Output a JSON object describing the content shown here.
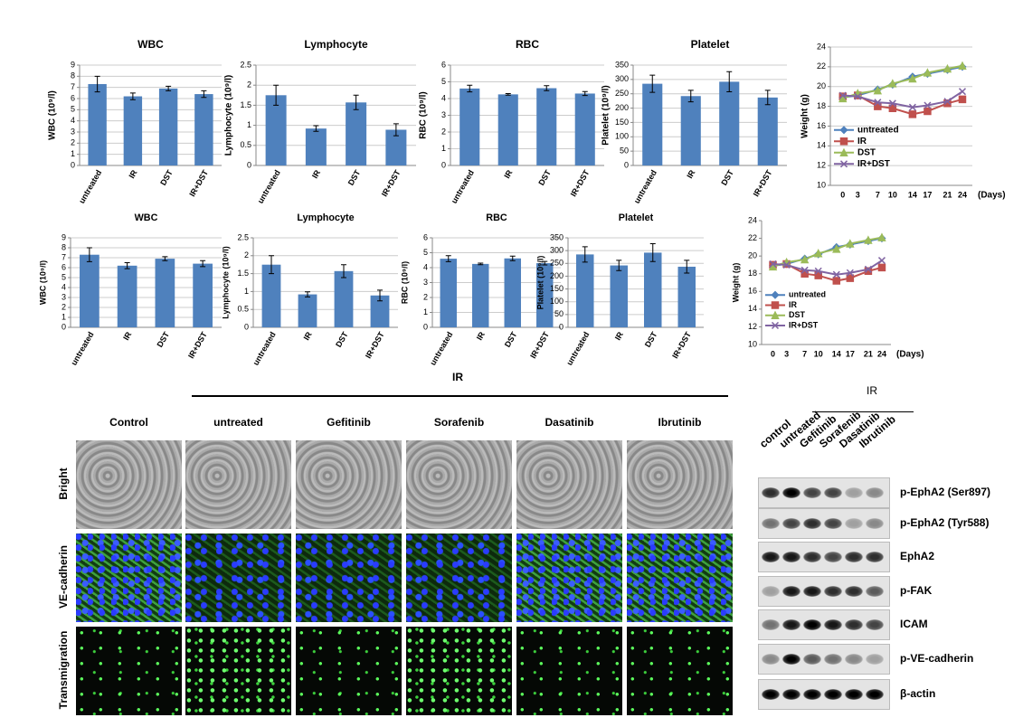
{
  "chart_data": [
    {
      "type": "bar",
      "title": "WBC",
      "ylabel": "WBC (10⁹/l)",
      "categories": [
        "untreated",
        "IR",
        "DST",
        "IR+DST"
      ],
      "values": [
        7.3,
        6.2,
        6.9,
        6.4
      ],
      "errors": [
        0.7,
        0.3,
        0.2,
        0.3
      ],
      "color": "#4f81bd",
      "ylim": [
        0,
        9
      ],
      "yticks": [
        0,
        1,
        2,
        3,
        4,
        5,
        6,
        7,
        8,
        9
      ],
      "grid": true
    },
    {
      "type": "bar",
      "title": "Lymphocyte",
      "ylabel": "Lymphocyte (10⁹/l)",
      "categories": [
        "untreated",
        "IR",
        "DST",
        "IR+DST"
      ],
      "values": [
        1.75,
        0.92,
        1.57,
        0.89
      ],
      "errors": [
        0.25,
        0.07,
        0.18,
        0.15
      ],
      "color": "#4f81bd",
      "ylim": [
        0,
        2.5
      ],
      "yticks": [
        0,
        0.5,
        1,
        1.5,
        2,
        2.5
      ],
      "grid": true
    },
    {
      "type": "bar",
      "title": "RBC",
      "ylabel": "RBC (10⁹/l)",
      "categories": [
        "untreated",
        "IR",
        "DST",
        "IR+DST"
      ],
      "values": [
        4.6,
        4.25,
        4.62,
        4.3
      ],
      "errors": [
        0.2,
        0.05,
        0.15,
        0.12
      ],
      "color": "#4f81bd",
      "ylim": [
        0,
        6
      ],
      "yticks": [
        0,
        1,
        2,
        3,
        4,
        5,
        6
      ],
      "grid": true
    },
    {
      "type": "bar",
      "title": "Platelet",
      "ylabel": "Platelet (10⁹/l)",
      "categories": [
        "untreated",
        "IR",
        "DST",
        "IR+DST"
      ],
      "values": [
        285,
        242,
        292,
        237
      ],
      "errors": [
        30,
        20,
        35,
        25
      ],
      "color": "#4f81bd",
      "ylim": [
        0,
        350
      ],
      "yticks": [
        0,
        50,
        100,
        150,
        200,
        250,
        300,
        350
      ],
      "grid": true
    },
    {
      "type": "line",
      "ylabel": "Weight (g)",
      "xlabel": "(Days)",
      "x": [
        0,
        3,
        7,
        10,
        14,
        17,
        21,
        24
      ],
      "xticks": [
        0,
        3,
        7,
        10,
        14,
        17,
        21,
        24
      ],
      "xlim": [
        -2.5,
        26
      ],
      "ylim": [
        10,
        24
      ],
      "yticks": [
        10,
        12,
        14,
        16,
        18,
        20,
        22,
        24
      ],
      "grid": true,
      "legend": "lower left",
      "series": [
        {
          "name": "untreated",
          "color": "#4f81bd",
          "values": [
            18.9,
            19.1,
            19.7,
            20.2,
            21.0,
            21.3,
            21.7,
            22.0
          ]
        },
        {
          "name": "IR",
          "color": "#c0504d",
          "values": [
            19.0,
            19.1,
            18.0,
            17.8,
            17.2,
            17.5,
            18.3,
            18.7
          ]
        },
        {
          "name": "DST",
          "color": "#9bbb59",
          "values": [
            18.8,
            19.3,
            19.6,
            20.3,
            20.8,
            21.4,
            21.8,
            22.1
          ]
        },
        {
          "name": "IR+DST",
          "color": "#8064a2",
          "values": [
            19.1,
            19.0,
            18.4,
            18.3,
            17.9,
            18.1,
            18.5,
            19.5
          ]
        }
      ]
    },
    {
      "type": "bar",
      "title": "WBC",
      "ylabel": "WBC (10⁹/l)",
      "categories": [
        "untreated",
        "IR",
        "DST",
        "IR+DST"
      ],
      "values": [
        7.3,
        6.2,
        6.9,
        6.4
      ],
      "errors": [
        0.7,
        0.3,
        0.2,
        0.3
      ],
      "color": "#4f81bd",
      "ylim": [
        0,
        9
      ],
      "yticks": [
        0,
        1,
        2,
        3,
        4,
        5,
        6,
        7,
        8,
        9
      ],
      "grid": true
    },
    {
      "type": "bar",
      "title": "Lymphocyte",
      "ylabel": "Lymphocyte (10⁹/l)",
      "categories": [
        "untreated",
        "IR",
        "DST",
        "IR+DST"
      ],
      "values": [
        1.75,
        0.92,
        1.57,
        0.89
      ],
      "errors": [
        0.25,
        0.07,
        0.18,
        0.15
      ],
      "color": "#4f81bd",
      "ylim": [
        0,
        2.5
      ],
      "yticks": [
        0,
        0.5,
        1,
        1.5,
        2,
        2.5
      ],
      "grid": true
    },
    {
      "type": "bar",
      "title": "RBC",
      "ylabel": "RBC (10⁹/l)",
      "categories": [
        "untreated",
        "IR",
        "DST",
        "IR+DST"
      ],
      "values": [
        4.6,
        4.25,
        4.62,
        4.3
      ],
      "errors": [
        0.2,
        0.05,
        0.15,
        0.12
      ],
      "color": "#4f81bd",
      "ylim": [
        0,
        6
      ],
      "yticks": [
        0,
        1,
        2,
        3,
        4,
        5,
        6
      ],
      "grid": true
    },
    {
      "type": "bar",
      "title": "Platelet",
      "ylabel": "Platelet (10⁹/l)",
      "categories": [
        "untreated",
        "IR",
        "DST",
        "IR+DST"
      ],
      "values": [
        285,
        242,
        292,
        237
      ],
      "errors": [
        30,
        20,
        35,
        25
      ],
      "color": "#4f81bd",
      "ylim": [
        0,
        350
      ],
      "yticks": [
        0,
        50,
        100,
        150,
        200,
        250,
        300,
        350
      ],
      "grid": true
    },
    {
      "type": "line",
      "ylabel": "Weight (g)",
      "xlabel": "(Days)",
      "x": [
        0,
        3,
        7,
        10,
        14,
        17,
        21,
        24
      ],
      "xticks": [
        0,
        3,
        7,
        10,
        14,
        17,
        21,
        24
      ],
      "xlim": [
        -2.5,
        26
      ],
      "ylim": [
        10,
        24
      ],
      "yticks": [
        10,
        12,
        14,
        16,
        18,
        20,
        22,
        24
      ],
      "grid": false,
      "legend": "lower left",
      "series": [
        {
          "name": "untreated",
          "color": "#4f81bd",
          "values": [
            18.9,
            19.1,
            19.7,
            20.2,
            21.0,
            21.3,
            21.7,
            22.0
          ]
        },
        {
          "name": "IR",
          "color": "#c0504d",
          "values": [
            19.0,
            19.1,
            18.0,
            17.8,
            17.2,
            17.5,
            18.3,
            18.7
          ]
        },
        {
          "name": "DST",
          "color": "#9bbb59",
          "values": [
            18.8,
            19.3,
            19.6,
            20.3,
            20.8,
            21.4,
            21.8,
            22.1
          ]
        },
        {
          "name": "IR+DST",
          "color": "#8064a2",
          "values": [
            19.1,
            19.0,
            18.4,
            18.3,
            17.9,
            18.1,
            18.5,
            19.5
          ]
        }
      ]
    }
  ],
  "micrographs": {
    "group_label": "IR",
    "columns": [
      "Control",
      "untreated",
      "Gefitinib",
      "Sorafenib",
      "Dasatinib",
      "Ibrutinib"
    ],
    "rows": [
      "Bright",
      "VE-cadherin",
      "Transmigration"
    ]
  },
  "western_blot": {
    "group_label": "IR",
    "lanes": [
      "control",
      "untreated",
      "Gefitinib",
      "Sorafenib",
      "Dasatinib",
      "Ibrutinib"
    ],
    "bands": [
      "p-EphA2 (Ser897)",
      "p-EphA2 (Tyr588)",
      "EphA2",
      "p-FAK",
      "ICAM",
      "p-VE-cadherin",
      "β-actin"
    ]
  }
}
